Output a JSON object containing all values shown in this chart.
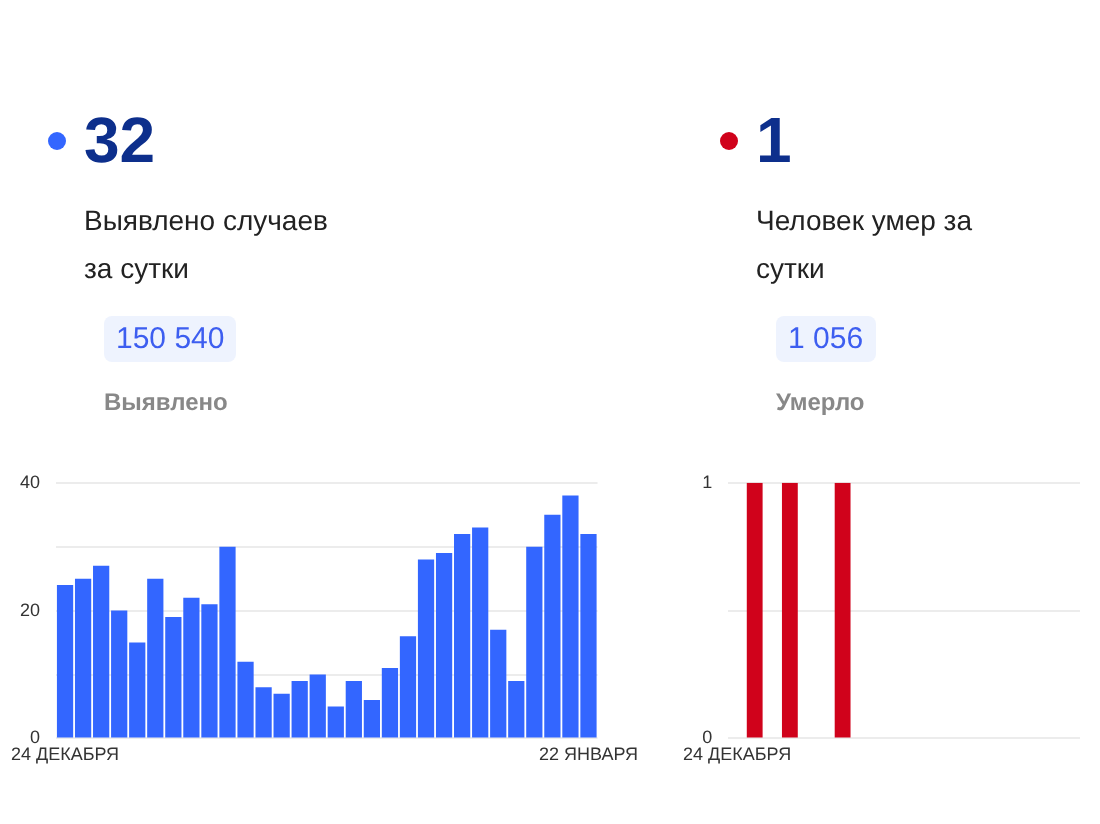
{
  "chart_data": [
    {
      "type": "bar",
      "title": "32",
      "subtitle": "Выявлено случаев за сутки",
      "annotations": [
        "150 540",
        "Выявлено"
      ],
      "categories": [
        "24 ДЕКАБРЯ",
        null,
        null,
        null,
        null,
        null,
        null,
        null,
        null,
        null,
        null,
        null,
        null,
        null,
        null,
        null,
        null,
        null,
        null,
        null,
        null,
        null,
        null,
        null,
        null,
        null,
        null,
        null,
        null,
        "22 ЯНВАРЯ"
      ],
      "values": [
        24,
        25,
        27,
        20,
        15,
        25,
        19,
        22,
        21,
        30,
        12,
        8,
        7,
        9,
        10,
        5,
        9,
        6,
        11,
        16,
        28,
        29,
        32,
        33,
        17,
        9,
        30,
        35,
        38,
        32
      ],
      "color": "#3366ff",
      "ylim": [
        0,
        40
      ],
      "yticks": [
        0,
        {
          "value": 10,
          "label": null
        },
        20,
        {
          "value": 30,
          "label": null
        },
        40
      ],
      "grid": "y"
    },
    {
      "type": "bar",
      "title": "1",
      "subtitle": "Человек умер за сутки",
      "annotations": [
        "1 056",
        "Умерло"
      ],
      "categories": [
        "24 ДЕКАБРЯ",
        null,
        null,
        null,
        null,
        null,
        null,
        null,
        null,
        null,
        null,
        null,
        null,
        null,
        null,
        null,
        null,
        null,
        null,
        null
      ],
      "values": [
        0,
        1,
        0,
        1,
        0,
        0,
        1,
        0,
        0,
        0,
        0,
        0,
        0,
        0,
        0,
        0,
        0,
        0,
        0,
        0
      ],
      "color": "#d0021b",
      "ylim": [
        0,
        1
      ],
      "yticks": [
        0,
        {
          "value": 0.5,
          "label": null
        },
        1
      ],
      "grid": "y"
    }
  ]
}
